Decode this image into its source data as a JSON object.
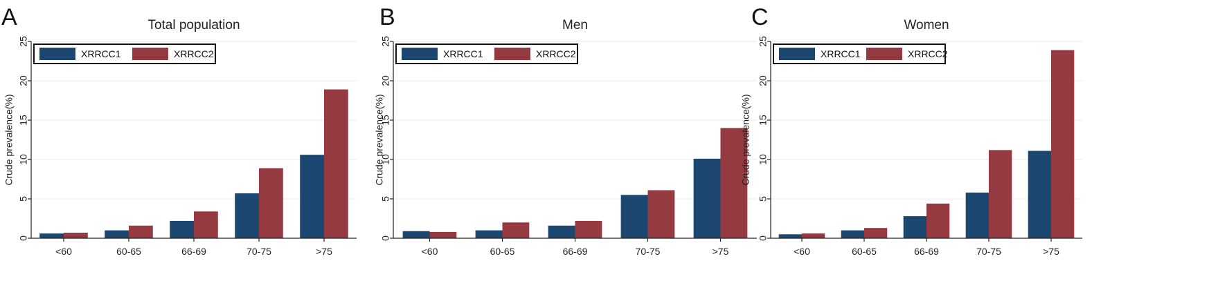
{
  "colors": {
    "series1": "#1b4770",
    "series2": "#963a42"
  },
  "chart_data": [
    {
      "type": "bar",
      "panel_letter": "A",
      "title": "Total population",
      "xlabel": "",
      "ylabel": "Crude prevalence(%)",
      "ylim": [
        0,
        25
      ],
      "yticks": [
        "0",
        "5",
        "10",
        "15",
        "20",
        "25"
      ],
      "categories": [
        "<60",
        "60-65",
        "66-69",
        "70-75",
        ">75"
      ],
      "grid": true,
      "legend_position": "top-left",
      "series": [
        {
          "name": "XRRCC1",
          "values": [
            0.6,
            1.0,
            2.2,
            5.7,
            10.6
          ]
        },
        {
          "name": "XRRCC2",
          "values": [
            0.7,
            1.6,
            3.4,
            8.9,
            18.9
          ]
        }
      ]
    },
    {
      "type": "bar",
      "panel_letter": "B",
      "title": "Men",
      "xlabel": "",
      "ylabel": "Crude prevalence(%)",
      "ylim": [
        0,
        25
      ],
      "yticks": [
        "0",
        "5",
        "10",
        "15",
        "20",
        "25"
      ],
      "categories": [
        "<60",
        "60-65",
        "66-69",
        "70-75",
        ">75"
      ],
      "grid": true,
      "legend_position": "top-left",
      "series": [
        {
          "name": "XRRCC1",
          "values": [
            0.9,
            1.0,
            1.6,
            5.5,
            10.1
          ]
        },
        {
          "name": "XRRCC2",
          "values": [
            0.8,
            2.0,
            2.2,
            6.1,
            14.0
          ]
        }
      ]
    },
    {
      "type": "bar",
      "panel_letter": "C",
      "title": "Women",
      "xlabel": "",
      "ylabel": "Crude prevalence(%)",
      "ylim": [
        0,
        25
      ],
      "yticks": [
        "0",
        "5",
        "10",
        "15",
        "20",
        "25"
      ],
      "categories": [
        "<60",
        "60-65",
        "66-69",
        "70-75",
        ">75"
      ],
      "grid": true,
      "legend_position": "top-left",
      "series": [
        {
          "name": "XRRCC1",
          "values": [
            0.5,
            1.0,
            2.8,
            5.8,
            11.1
          ]
        },
        {
          "name": "XRRCC2",
          "values": [
            0.6,
            1.3,
            4.4,
            11.2,
            23.9
          ]
        }
      ]
    }
  ]
}
